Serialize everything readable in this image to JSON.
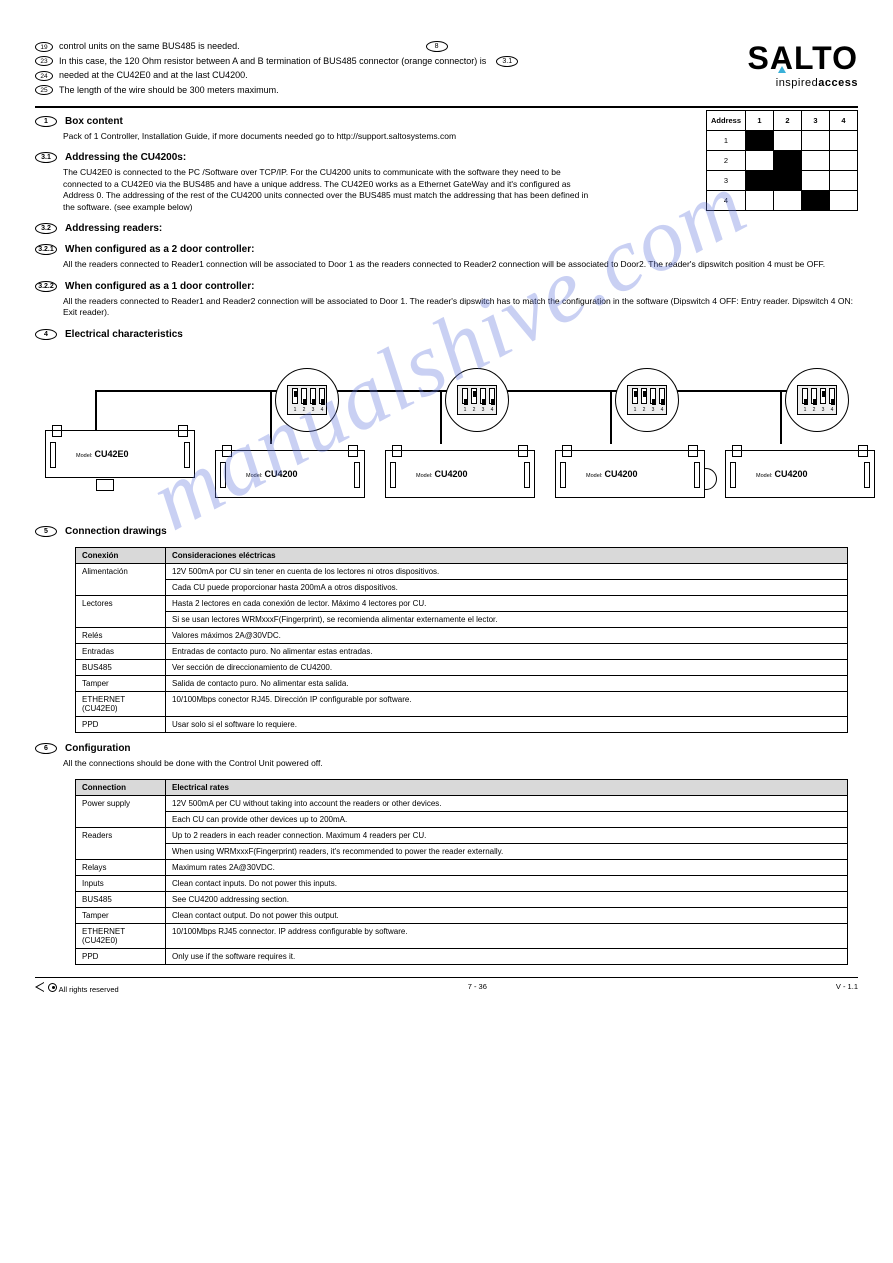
{
  "header": {
    "lines": [
      {
        "num": "19",
        "text": "control units on the same BUS485 is needed."
      },
      {
        "num": "23",
        "text": "In this case, the 120 Ohm resistor between A and B termination of BUS485 connector (orange connector) is"
      },
      {
        "num": "24",
        "text": "needed at the CU42E0 and at the last CU4200."
      },
      {
        "num": "25",
        "text": "The length of the wire should be 300 meters maximum."
      }
    ],
    "page_marker": {
      "a": "8",
      "b": "3.1"
    }
  },
  "logo": {
    "main": "SALTO",
    "sub_a": "inspired",
    "sub_b": "access"
  },
  "dip_legend": {
    "headers": [
      "Address",
      "1",
      "2",
      "3",
      "4"
    ],
    "rows": [
      {
        "addr": "1",
        "cells": [
          "on",
          "",
          "",
          ""
        ]
      },
      {
        "addr": "2",
        "cells": [
          "",
          "on",
          "",
          ""
        ]
      },
      {
        "addr": "3",
        "cells": [
          "on",
          "on",
          "",
          ""
        ]
      },
      {
        "addr": "4",
        "cells": [
          "",
          "",
          "on",
          ""
        ]
      }
    ]
  },
  "sections": {
    "s1": {
      "num": "1",
      "title": "Box content",
      "body": "Pack of 1 Controller, Installation Guide, if more documents needed go to http://support.saltosystems.com"
    },
    "s31": {
      "num": "3.1",
      "title": "Addressing the CU4200s:",
      "body": "The CU42E0 is connected to the PC /Software over TCP/IP. For the CU4200 units to communicate with the software they need to be connected to a CU42E0 via the BUS485 and have a unique address. The CU42E0 works as a Ethernet GateWay and it's configured as Address 0. The addressing of the rest of the CU4200 units connected over the BUS485 must match the addressing that has been defined in the software. (see example below)"
    },
    "s32": {
      "num": "3.2",
      "title": "Addressing readers:"
    },
    "s321": {
      "num": "3.2.1",
      "title": "When configured as a 2 door controller:",
      "body": "All the readers connected to Reader1 connection will be associated to Door 1 as the readers connected to Reader2 connection will be associated to Door2. The reader's dipswitch position 4 must be OFF."
    },
    "s322": {
      "num": "3.2.2",
      "title": "When configured as a 1 door controller:",
      "body": "All the readers connected to Reader1 and Reader2 connection will be associated to Door 1. The reader's dipswitch has to match the configuration in the software (Dipswitch 4 OFF: Entry reader. Dipswitch 4 ON: Exit reader)."
    },
    "s4": {
      "num": "4",
      "title": "Electrical characteristics"
    },
    "s5": {
      "num": "5",
      "title": "Connection drawings"
    },
    "s6": {
      "num": "6",
      "title": "Configuration",
      "body": "All the connections should be done with the Control Unit powered off."
    }
  },
  "diagram": {
    "master": "CU42E0",
    "slaves": [
      "CU4200",
      "CU4200",
      "CU4200",
      "CU4200"
    ],
    "dips": [
      [
        0,
        1,
        1,
        1
      ],
      [
        1,
        0,
        1,
        1
      ],
      [
        0,
        0,
        1,
        1
      ],
      [
        1,
        1,
        0,
        1
      ]
    ]
  },
  "table_s4": {
    "title_left": "Conexión",
    "title_right": "Consideraciones eléctricas",
    "rows": [
      [
        "Alimentación",
        "12V 500mA por CU sin tener en cuenta de los lectores ni otros dispositivos.\nCada CU puede proporcionar hasta 200mA a otros dispositivos."
      ],
      [
        "Lectores",
        "Hasta 2 lectores en cada conexión de lector. Máximo 4 lectores por CU.\nSi se usan lectores WRMxxxF(Fingerprint), se recomienda alimentar externamente el lector."
      ],
      [
        "Relés",
        "Valores máximos 2A@30VDC."
      ],
      [
        "Entradas",
        "Entradas de contacto puro. No alimentar estas entradas."
      ],
      [
        "BUS485",
        "Ver sección de direccionamiento de CU4200."
      ],
      [
        "Tamper",
        "Salida de contacto puro. No alimentar esta salida."
      ],
      [
        "ETHERNET (CU42E0)",
        "10/100Mbps conector RJ45. Dirección IP configurable por software."
      ],
      [
        "PPD",
        "Usar solo si el software lo requiere."
      ]
    ]
  },
  "table_s6": {
    "title_left": "Connection",
    "title_right": "Electrical rates",
    "rows": [
      [
        "Power supply",
        "12V 500mA per CU without taking into account the readers or other devices.\nEach CU can provide other devices up to 200mA."
      ],
      [
        "Readers",
        "Up to 2 readers in each reader connection. Maximum 4 readers per CU.\nWhen using WRMxxxF(Fingerprint) readers, it's recommended to power the reader externally."
      ],
      [
        "Relays",
        "Maximum rates 2A@30VDC."
      ],
      [
        "Inputs",
        "Clean contact inputs. Do not power this inputs."
      ],
      [
        "BUS485",
        "See CU4200 addressing section."
      ],
      [
        "Tamper",
        "Clean contact output. Do not power this output."
      ],
      [
        "ETHERNET (CU42E0)",
        "10/100Mbps RJ45 connector. IP address configurable by software."
      ],
      [
        "PPD",
        "Only use if the software requires it."
      ]
    ]
  },
  "footer": {
    "left": "All rights reserved",
    "center": "7 - 36",
    "right": "V - 1.1"
  }
}
